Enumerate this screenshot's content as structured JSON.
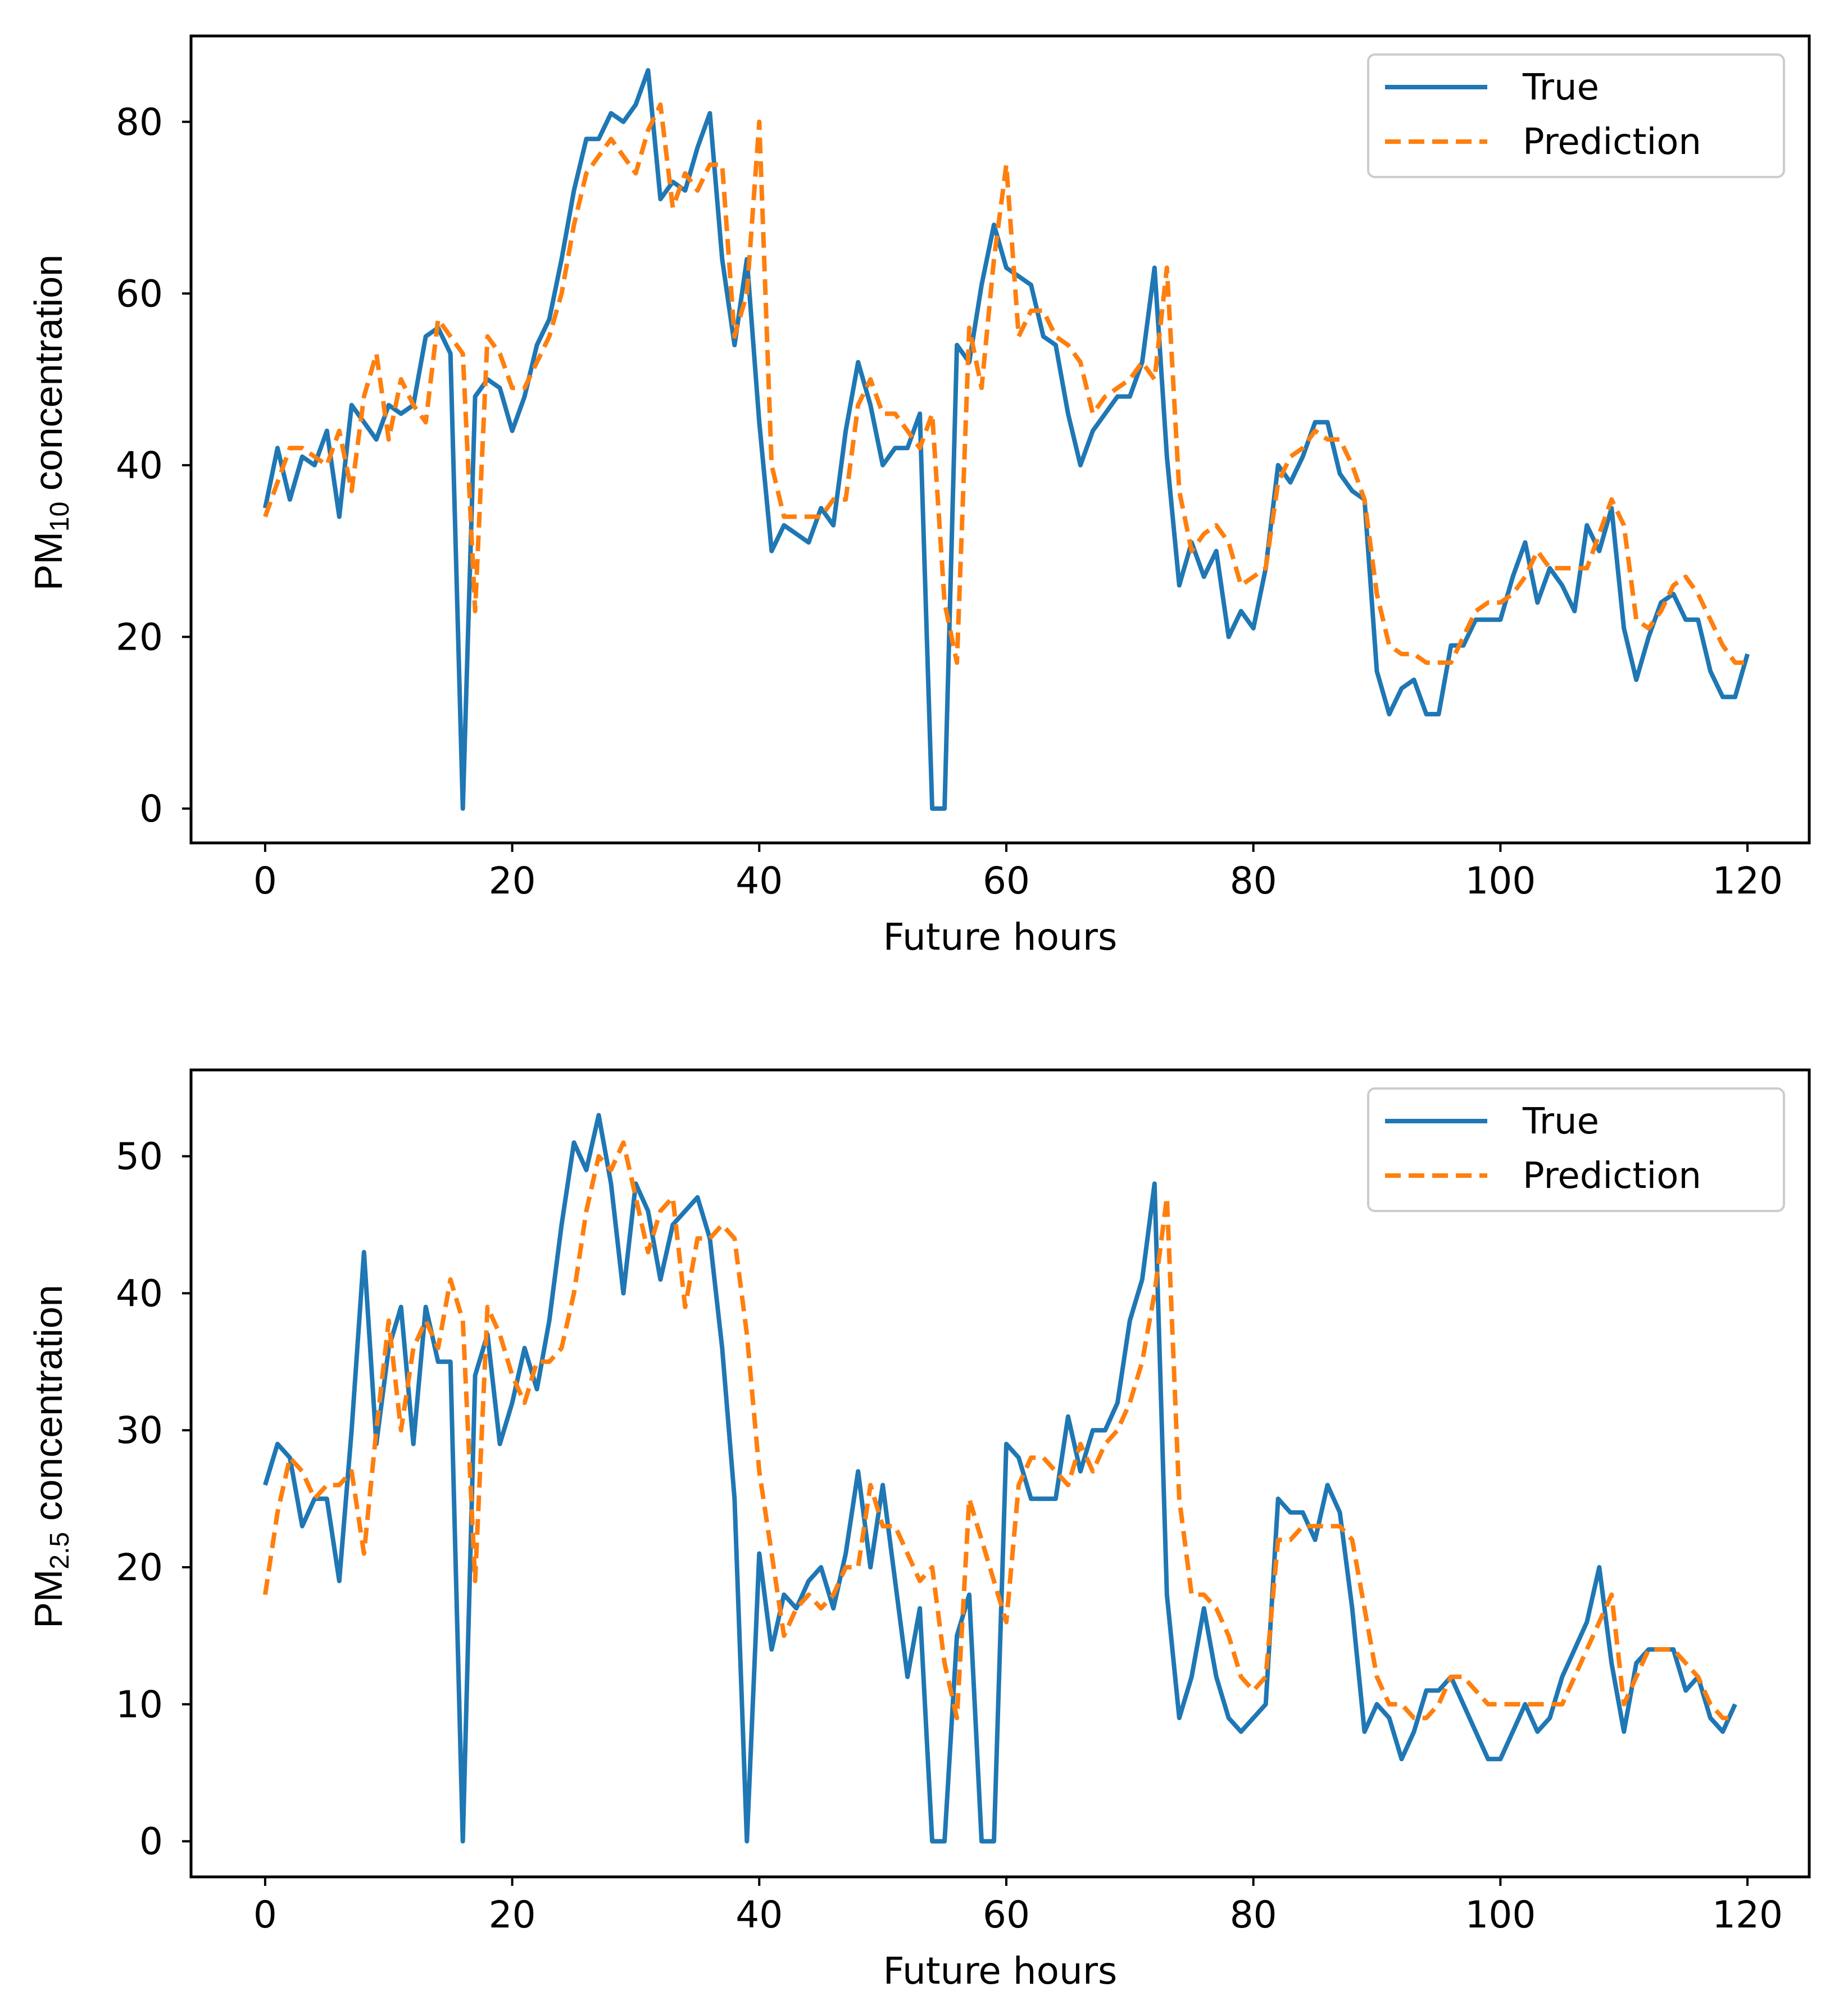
{
  "chart_data": [
    {
      "type": "line",
      "title": "",
      "xlabel": "Future hours",
      "ylabel_main": "PM",
      "ylabel_sub": "10",
      "ylabel_rest": " concentration",
      "xlim": [
        -6,
        125
      ],
      "ylim": [
        -4,
        90
      ],
      "xticks": [
        0,
        20,
        40,
        60,
        80,
        100,
        120
      ],
      "yticks": [
        0,
        20,
        40,
        60,
        80
      ],
      "legend": {
        "position": "top-right",
        "labels": [
          "True",
          "Prediction"
        ]
      },
      "series": [
        {
          "name": "True",
          "color": "#1f77b4",
          "style": "solid",
          "values": [
            35,
            42,
            36,
            41,
            40,
            44,
            34,
            47,
            45,
            43,
            47,
            46,
            47,
            55,
            56,
            53,
            0,
            48,
            50,
            49,
            44,
            48,
            54,
            57,
            64,
            72,
            78,
            78,
            81,
            80,
            82,
            86,
            71,
            73,
            72,
            77,
            81,
            64,
            54,
            64,
            45,
            30,
            33,
            32,
            31,
            35,
            33,
            44,
            52,
            47,
            40,
            42,
            42,
            46,
            0,
            0,
            54,
            52,
            61,
            68,
            63,
            62,
            61,
            55,
            54,
            46,
            40,
            44,
            46,
            48,
            48,
            52,
            63,
            41,
            26,
            31,
            27,
            30,
            20,
            23,
            21,
            28,
            40,
            38,
            41,
            45,
            45,
            39,
            37,
            36,
            16,
            11,
            14,
            15,
            11,
            11,
            19,
            19,
            22,
            22,
            22,
            27,
            31,
            24,
            28,
            26,
            23,
            33,
            30,
            35,
            21,
            15,
            20,
            24,
            25,
            22,
            22,
            16,
            13,
            13,
            18
          ]
        },
        {
          "name": "Prediction",
          "color": "#ff7f0e",
          "style": "dashed",
          "values": [
            34,
            38,
            42,
            42,
            41,
            40,
            44,
            37,
            48,
            53,
            43,
            50,
            47,
            45,
            57,
            55,
            53,
            23,
            55,
            53,
            49,
            49,
            52,
            55,
            60,
            68,
            74,
            76,
            78,
            76,
            74,
            79,
            82,
            70,
            74,
            72,
            75,
            75,
            55,
            60,
            80,
            40,
            34,
            34,
            34,
            34,
            36,
            36,
            47,
            50,
            46,
            46,
            44,
            42,
            46,
            24,
            17,
            56,
            49,
            64,
            75,
            55,
            58,
            58,
            55,
            54,
            52,
            46,
            48,
            49,
            50,
            52,
            50,
            63,
            37,
            30,
            32,
            33,
            31,
            26,
            27,
            28,
            38,
            41,
            42,
            44,
            43,
            43,
            40,
            36,
            25,
            19,
            18,
            18,
            17,
            17,
            17,
            20,
            23,
            24,
            24,
            25,
            27,
            30,
            28,
            28,
            28,
            28,
            32,
            36,
            33,
            22,
            21,
            23,
            26,
            27,
            25,
            22,
            19,
            17,
            17
          ]
        }
      ]
    },
    {
      "type": "line",
      "title": "",
      "xlabel": "Future hours",
      "ylabel_main": "PM",
      "ylabel_sub": "2.5",
      "ylabel_rest": " concentration",
      "xlim": [
        -6,
        125
      ],
      "ylim": [
        -2.6,
        56.3
      ],
      "xticks": [
        0,
        20,
        40,
        60,
        80,
        100,
        120
      ],
      "yticks": [
        0,
        10,
        20,
        30,
        40,
        50
      ],
      "legend": {
        "position": "top-right",
        "labels": [
          "True",
          "Prediction"
        ]
      },
      "series": [
        {
          "name": "True",
          "color": "#1f77b4",
          "style": "solid",
          "values": [
            26,
            29,
            28,
            23,
            25,
            25,
            19,
            30,
            43,
            29,
            36,
            39,
            29,
            39,
            35,
            35,
            0,
            34,
            37,
            29,
            32,
            36,
            33,
            38,
            45,
            51,
            49,
            53,
            48,
            40,
            48,
            46,
            41,
            45,
            46,
            47,
            44,
            36,
            25,
            0,
            21,
            14,
            18,
            17,
            19,
            20,
            17,
            21,
            27,
            20,
            26,
            19,
            12,
            17,
            0,
            0,
            15,
            18,
            0,
            0,
            29,
            28,
            25,
            25,
            25,
            31,
            27,
            30,
            30,
            32,
            38,
            41,
            48,
            18,
            9,
            12,
            17,
            12,
            9,
            8,
            9,
            10,
            25,
            24,
            24,
            22,
            26,
            24,
            17,
            8,
            10,
            9,
            6,
            8,
            11,
            11,
            12,
            10,
            8,
            6,
            6,
            8,
            10,
            8,
            9,
            12,
            14,
            16,
            20,
            13,
            8,
            13,
            14,
            14,
            14,
            11,
            12,
            9,
            8,
            10
          ]
        },
        {
          "name": "Prediction",
          "color": "#ff7f0e",
          "style": "dashed",
          "values": [
            18,
            24,
            28,
            27,
            25,
            26,
            26,
            27,
            21,
            30,
            38,
            30,
            36,
            38,
            36,
            41,
            38,
            19,
            39,
            37,
            34,
            32,
            35,
            35,
            36,
            40,
            46,
            50,
            49,
            51,
            47,
            43,
            46,
            47,
            39,
            44,
            44,
            45,
            44,
            37,
            27,
            21,
            15,
            17,
            18,
            17,
            18,
            20,
            20,
            26,
            23,
            23,
            21,
            19,
            20,
            13,
            9,
            25,
            22,
            19,
            16,
            26,
            28,
            28,
            27,
            26,
            29,
            27,
            29,
            30,
            32,
            35,
            40,
            47,
            25,
            18,
            18,
            17,
            15,
            12,
            11,
            12,
            22,
            22,
            23,
            23,
            23,
            23,
            22,
            17,
            12,
            10,
            10,
            9,
            9,
            10,
            12,
            12,
            11,
            10,
            10,
            10,
            10,
            10,
            10,
            10,
            12,
            14,
            16,
            18,
            10,
            12,
            14,
            14,
            14,
            13,
            12,
            10,
            9,
            9
          ]
        }
      ]
    }
  ]
}
